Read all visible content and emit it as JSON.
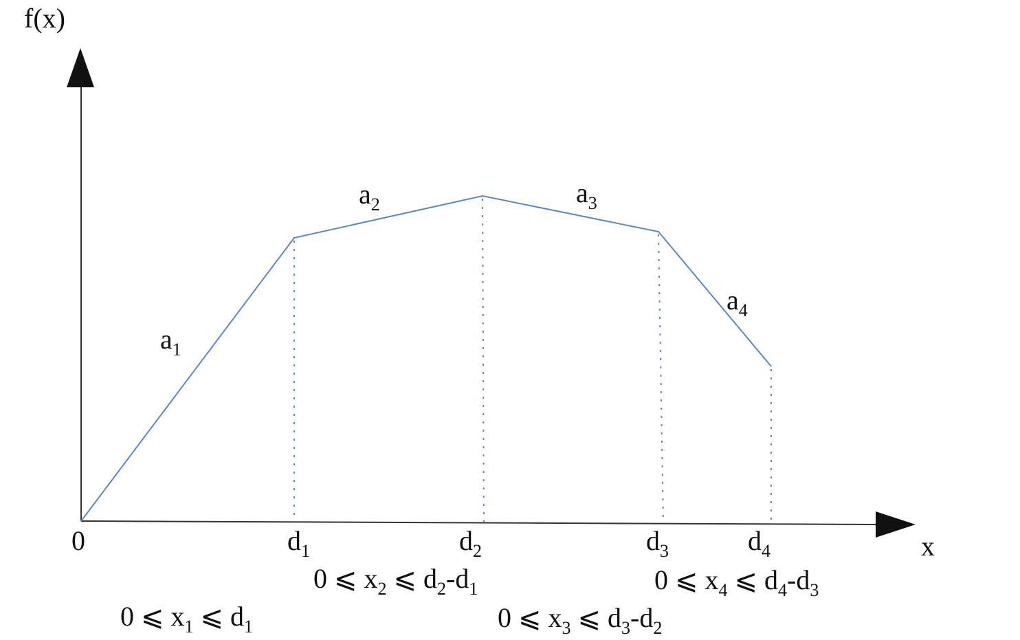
{
  "axes": {
    "y_label": "f(x)",
    "x_label": "x",
    "origin": "0"
  },
  "segments": [
    {
      "label": [
        {
          "text": "a"
        },
        {
          "sub": "1"
        }
      ]
    },
    {
      "label": [
        {
          "text": "a"
        },
        {
          "sub": "2"
        }
      ]
    },
    {
      "label": [
        {
          "text": "a"
        },
        {
          "sub": "3"
        }
      ]
    },
    {
      "label": [
        {
          "text": "a"
        },
        {
          "sub": "4"
        }
      ]
    }
  ],
  "breakpoints": [
    {
      "label": [
        {
          "text": "d"
        },
        {
          "sub": "1"
        }
      ]
    },
    {
      "label": [
        {
          "text": "d"
        },
        {
          "sub": "2"
        }
      ]
    },
    {
      "label": [
        {
          "text": "d"
        },
        {
          "sub": "3"
        }
      ]
    },
    {
      "label": [
        {
          "text": "d"
        },
        {
          "sub": "4"
        }
      ]
    }
  ],
  "constraints": [
    [
      {
        "text": "0 ⩽ x"
      },
      {
        "sub": "1"
      },
      {
        "text": " ⩽ d"
      },
      {
        "sub": "1"
      }
    ],
    [
      {
        "text": "0 ⩽ x"
      },
      {
        "sub": "2"
      },
      {
        "text": " ⩽ d"
      },
      {
        "sub": "2"
      },
      {
        "text": "-d"
      },
      {
        "sub": "1"
      }
    ],
    [
      {
        "text": "0 ⩽ x"
      },
      {
        "sub": "3"
      },
      {
        "text": " ⩽ d"
      },
      {
        "sub": "3"
      },
      {
        "text": "-d"
      },
      {
        "sub": "2"
      }
    ],
    [
      {
        "text": "0 ⩽ x"
      },
      {
        "sub": "4"
      },
      {
        "text": " ⩽ d"
      },
      {
        "sub": "4"
      },
      {
        "text": "-d"
      },
      {
        "sub": "3"
      }
    ]
  ]
}
